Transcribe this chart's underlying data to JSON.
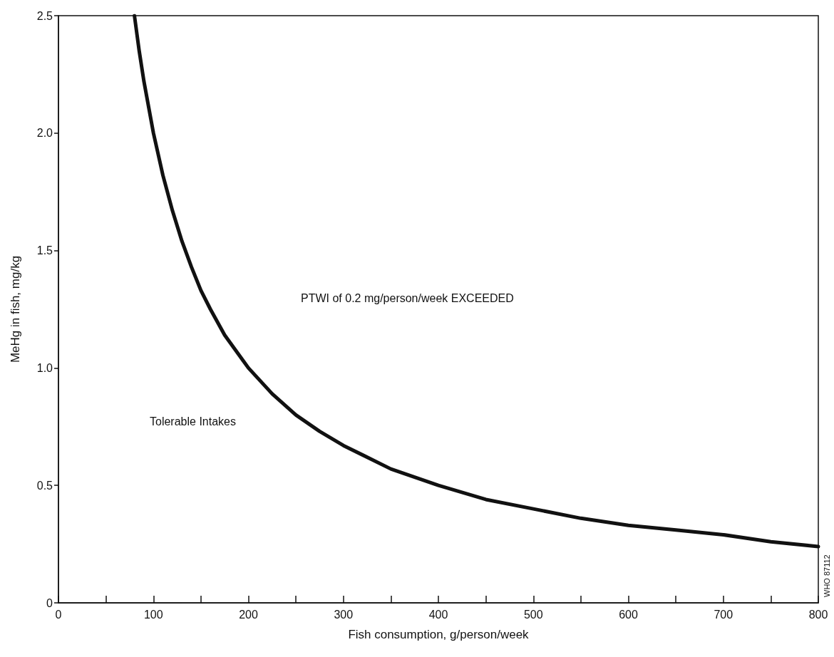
{
  "chart_data": {
    "type": "line",
    "xlabel": "Fish consumption, g/person/week",
    "ylabel": "MeHg in fish, mg/kg",
    "x": [
      80,
      85,
      90,
      100,
      110,
      120,
      130,
      140,
      150,
      160,
      175,
      200,
      225,
      250,
      275,
      300,
      350,
      400,
      450,
      500,
      550,
      600,
      650,
      700,
      750,
      800
    ],
    "series": [
      {
        "color": "#111111",
        "values": [
          2.5,
          2.35,
          2.22,
          2.0,
          1.82,
          1.67,
          1.54,
          1.43,
          1.33,
          1.25,
          1.14,
          1.0,
          0.89,
          0.8,
          0.73,
          0.67,
          0.57,
          0.5,
          0.44,
          0.4,
          0.36,
          0.33,
          0.31,
          0.29,
          0.26,
          0.24
        ]
      }
    ],
    "xlim": [
      0,
      800
    ],
    "xticks": [
      0,
      {
        "value": 50,
        "label": null
      },
      100,
      {
        "value": 150,
        "label": null
      },
      200,
      {
        "value": 250,
        "label": null
      },
      300,
      {
        "value": 350,
        "label": null
      },
      400,
      {
        "value": 450,
        "label": null
      },
      500,
      {
        "value": 550,
        "label": null
      },
      600,
      {
        "value": 650,
        "label": null
      },
      700,
      {
        "value": 750,
        "label": null
      },
      800
    ],
    "ylim": [
      0,
      2.5
    ],
    "yticks": [
      0,
      0.5,
      {
        "value": 1,
        "label": "1.0"
      },
      1.5,
      {
        "value": 2,
        "label": "2.0"
      },
      2.5
    ],
    "annotations": [
      "PTWI of 0.2 mg/person/week EXCEEDED",
      "Tolerable Intakes",
      "WHO 87112"
    ],
    "grid": false,
    "marker": "none",
    "line_style": "solid"
  }
}
